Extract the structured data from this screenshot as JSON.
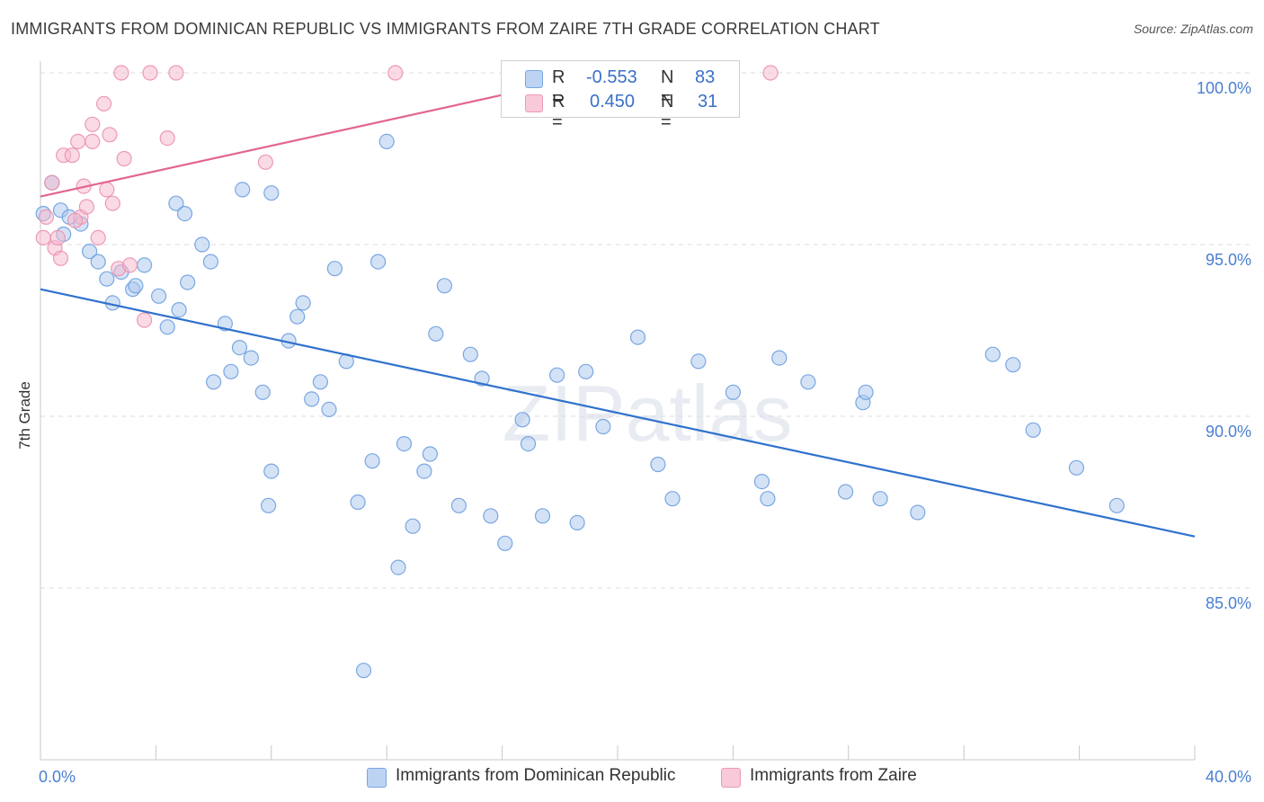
{
  "title": "IMMIGRANTS FROM DOMINICAN REPUBLIC VS IMMIGRANTS FROM ZAIRE 7TH GRADE CORRELATION CHART",
  "source": "Source: ZipAtlas.com",
  "watermark": "ZIPatlas",
  "legend": {
    "series1": {
      "r_label": "R =",
      "r_value": "-0.553",
      "n_label": "N =",
      "n_value": "83"
    },
    "series2": {
      "r_label": "R =",
      "r_value": "0.450",
      "n_label": "N =",
      "n_value": "31"
    }
  },
  "bottom_legend": {
    "series1": "Immigrants from Dominican Republic",
    "series2": "Immigrants from Zaire"
  },
  "colors": {
    "blue_fill": "#a9c6ee",
    "blue_stroke": "#6d9ee0",
    "blue_line": "#2f72cc",
    "pink_fill": "#f5b8cc",
    "pink_stroke": "#ec8fae",
    "pink_line": "#e2668f",
    "tick_text": "#4a7fd0"
  },
  "chart_data": {
    "type": "scatter",
    "title": "IMMIGRANTS FROM DOMINICAN REPUBLIC VS IMMIGRANTS FROM ZAIRE 7TH GRADE CORRELATION CHART",
    "xlabel": "",
    "ylabel": "7th Grade",
    "xlim": [
      0,
      40
    ],
    "ylim": [
      80.5,
      100.5
    ],
    "x_tick_labels": [
      "0.0%",
      "40.0%"
    ],
    "y_ticks": [
      85,
      90,
      95,
      100
    ],
    "y_tick_labels": [
      "85.0%",
      "90.0%",
      "95.0%",
      "100.0%"
    ],
    "grid": true,
    "series": [
      {
        "name": "Immigrants from Dominican Republic",
        "color": "#a9c6ee",
        "trend": {
          "x": [
            0,
            40
          ],
          "y": [
            93.7,
            86.5
          ]
        },
        "points": [
          [
            0.1,
            95.9
          ],
          [
            0.4,
            96.8
          ],
          [
            0.7,
            96.0
          ],
          [
            1.0,
            95.8
          ],
          [
            1.4,
            95.6
          ],
          [
            0.8,
            95.3
          ],
          [
            1.7,
            94.8
          ],
          [
            2.0,
            94.5
          ],
          [
            2.3,
            94.0
          ],
          [
            2.8,
            94.2
          ],
          [
            3.2,
            93.7
          ],
          [
            3.6,
            94.4
          ],
          [
            3.3,
            93.8
          ],
          [
            2.5,
            93.3
          ],
          [
            4.1,
            93.5
          ],
          [
            4.4,
            92.6
          ],
          [
            4.8,
            93.1
          ],
          [
            5.1,
            93.9
          ],
          [
            5.6,
            95.0
          ],
          [
            5.9,
            94.5
          ],
          [
            4.7,
            96.2
          ],
          [
            6.4,
            92.7
          ],
          [
            6.0,
            91.0
          ],
          [
            6.6,
            91.3
          ],
          [
            6.9,
            92.0
          ],
          [
            7.3,
            91.7
          ],
          [
            7.7,
            90.7
          ],
          [
            8.0,
            96.5
          ],
          [
            7.0,
            96.6
          ],
          [
            8.6,
            92.2
          ],
          [
            8.9,
            92.9
          ],
          [
            9.1,
            93.3
          ],
          [
            8.0,
            88.4
          ],
          [
            7.9,
            87.4
          ],
          [
            9.4,
            90.5
          ],
          [
            9.7,
            91.0
          ],
          [
            10.0,
            90.2
          ],
          [
            10.2,
            94.3
          ],
          [
            10.6,
            91.6
          ],
          [
            11.0,
            87.5
          ],
          [
            11.5,
            88.7
          ],
          [
            11.7,
            94.5
          ],
          [
            12.0,
            98.0
          ],
          [
            12.4,
            85.6
          ],
          [
            12.6,
            89.2
          ],
          [
            12.9,
            86.8
          ],
          [
            13.3,
            88.4
          ],
          [
            13.5,
            88.9
          ],
          [
            14.0,
            93.8
          ],
          [
            13.7,
            92.4
          ],
          [
            14.5,
            87.4
          ],
          [
            14.9,
            91.8
          ],
          [
            15.3,
            91.1
          ],
          [
            15.6,
            87.1
          ],
          [
            16.1,
            86.3
          ],
          [
            16.7,
            89.9
          ],
          [
            16.9,
            89.2
          ],
          [
            17.4,
            87.1
          ],
          [
            17.9,
            91.2
          ],
          [
            18.6,
            86.9
          ],
          [
            18.9,
            91.3
          ],
          [
            19.5,
            89.7
          ],
          [
            20.7,
            92.3
          ],
          [
            21.4,
            88.6
          ],
          [
            21.9,
            87.6
          ],
          [
            22.8,
            91.6
          ],
          [
            24.0,
            90.7
          ],
          [
            25.0,
            88.1
          ],
          [
            25.2,
            87.6
          ],
          [
            25.6,
            91.7
          ],
          [
            26.6,
            91.0
          ],
          [
            27.9,
            87.8
          ],
          [
            28.5,
            90.4
          ],
          [
            28.6,
            90.7
          ],
          [
            29.1,
            87.6
          ],
          [
            30.4,
            87.2
          ],
          [
            33.0,
            91.8
          ],
          [
            33.7,
            91.5
          ],
          [
            34.4,
            89.6
          ],
          [
            35.9,
            88.5
          ],
          [
            37.3,
            87.4
          ],
          [
            11.2,
            82.6
          ],
          [
            5.0,
            95.9
          ]
        ]
      },
      {
        "name": "Immigrants from Zaire",
        "color": "#f5b8cc",
        "trend": {
          "x": [
            0,
            19.5
          ],
          "y": [
            96.4,
            100.0
          ]
        },
        "points": [
          [
            0.1,
            95.2
          ],
          [
            0.4,
            96.8
          ],
          [
            0.5,
            94.9
          ],
          [
            0.6,
            95.2
          ],
          [
            0.7,
            94.6
          ],
          [
            0.8,
            97.6
          ],
          [
            1.1,
            97.6
          ],
          [
            1.3,
            98.0
          ],
          [
            1.4,
            95.8
          ],
          [
            1.5,
            96.7
          ],
          [
            1.6,
            96.1
          ],
          [
            1.8,
            98.0
          ],
          [
            1.8,
            98.5
          ],
          [
            2.0,
            95.2
          ],
          [
            2.2,
            99.1
          ],
          [
            2.3,
            96.6
          ],
          [
            2.4,
            98.2
          ],
          [
            2.5,
            96.2
          ],
          [
            2.7,
            94.3
          ],
          [
            2.9,
            97.5
          ],
          [
            3.1,
            94.4
          ],
          [
            3.6,
            92.8
          ],
          [
            2.8,
            100.0
          ],
          [
            3.8,
            100.0
          ],
          [
            4.7,
            100.0
          ],
          [
            4.4,
            98.1
          ],
          [
            7.8,
            97.4
          ],
          [
            12.3,
            100.0
          ],
          [
            25.3,
            100.0
          ],
          [
            1.2,
            95.7
          ],
          [
            0.2,
            95.8
          ]
        ]
      }
    ]
  }
}
